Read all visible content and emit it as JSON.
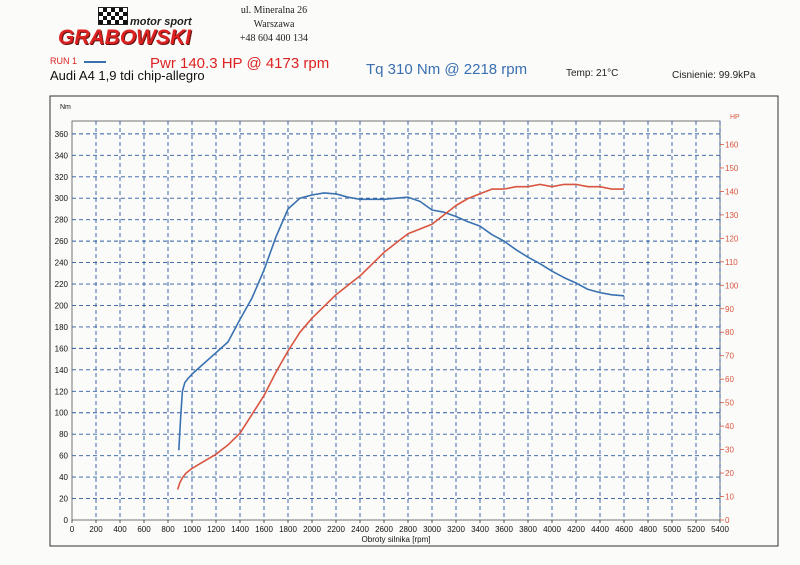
{
  "header": {
    "logo_top": "motor sport",
    "logo_brand": "GRABOWSKI",
    "address_line1": "ul. Mineralna 26",
    "address_line2": "Warszawa",
    "phone": "+48 604 400 134",
    "run_label": "RUN 1",
    "power_summary": "Pwr 140.3 HP @ 4173 rpm",
    "torque_summary": "Tq 310 Nm @ 2218 rpm",
    "temperature": "Temp: 21°C",
    "pressure": "Cisnienie: 99.9kPa",
    "vehicle": "Audi A4 1,9 tdi chip-allegro"
  },
  "colors": {
    "torque": "#3a72b0",
    "power": "#d9553f",
    "grid": "#2c5aa0",
    "axis_right": "#d9553f"
  },
  "chart_data": {
    "type": "line",
    "xlabel": "Obroty silnika [rpm]",
    "ylabel_left": "Nm",
    "ylabel_right": "HP",
    "xlim": [
      0,
      5400
    ],
    "ylim_left": [
      0,
      372
    ],
    "ylim_right": [
      0,
      170
    ],
    "x_ticks": [
      0,
      200,
      400,
      600,
      800,
      1000,
      1200,
      1400,
      1600,
      1800,
      2000,
      2200,
      2400,
      2600,
      2800,
      3000,
      3200,
      3400,
      3600,
      3800,
      4000,
      4200,
      4400,
      4600,
      4800,
      5000,
      5200,
      5400
    ],
    "y_ticks_left": [
      0,
      20,
      40,
      60,
      80,
      100,
      120,
      140,
      160,
      180,
      200,
      220,
      240,
      260,
      280,
      300,
      320,
      340,
      360
    ],
    "y_ticks_right": [
      0,
      10,
      20,
      30,
      40,
      50,
      60,
      70,
      80,
      90,
      100,
      110,
      120,
      130,
      140,
      150,
      160
    ],
    "grid": true,
    "series": [
      {
        "name": "Tq",
        "axis": "left",
        "x": [
          890,
          905,
          920,
          940,
          960,
          1000,
          1100,
          1200,
          1300,
          1400,
          1500,
          1600,
          1700,
          1800,
          1900,
          2000,
          2100,
          2200,
          2300,
          2400,
          2500,
          2600,
          2700,
          2800,
          2900,
          3000,
          3100,
          3200,
          3300,
          3400,
          3500,
          3600,
          3700,
          3800,
          3900,
          4000,
          4100,
          4200,
          4300,
          4400,
          4500,
          4600
        ],
        "values": [
          65,
          95,
          120,
          128,
          131,
          136,
          146,
          156,
          166,
          187,
          207,
          233,
          264,
          290,
          300,
          303,
          305,
          304,
          301,
          299,
          299,
          299,
          300,
          301,
          297,
          289,
          287,
          283,
          278,
          274,
          266,
          260,
          252,
          245,
          239,
          232,
          226,
          221,
          215,
          212,
          210,
          209
        ]
      },
      {
        "name": "Pwr",
        "axis": "right",
        "x": [
          880,
          900,
          920,
          950,
          1000,
          1100,
          1200,
          1300,
          1400,
          1500,
          1600,
          1700,
          1800,
          1900,
          2000,
          2100,
          2200,
          2300,
          2400,
          2500,
          2600,
          2700,
          2800,
          2900,
          3000,
          3100,
          3200,
          3300,
          3400,
          3500,
          3600,
          3700,
          3800,
          3900,
          4000,
          4100,
          4200,
          4300,
          4400,
          4500,
          4600
        ],
        "values": [
          13,
          16,
          18,
          20,
          22,
          25,
          28,
          32,
          37,
          45,
          53,
          63,
          72,
          80,
          86,
          91,
          96,
          100,
          104,
          109,
          114,
          118,
          122,
          124,
          126,
          130,
          134,
          137,
          139,
          141,
          141,
          142,
          142,
          143,
          142,
          143,
          143,
          142,
          142,
          141,
          141
        ]
      }
    ]
  }
}
